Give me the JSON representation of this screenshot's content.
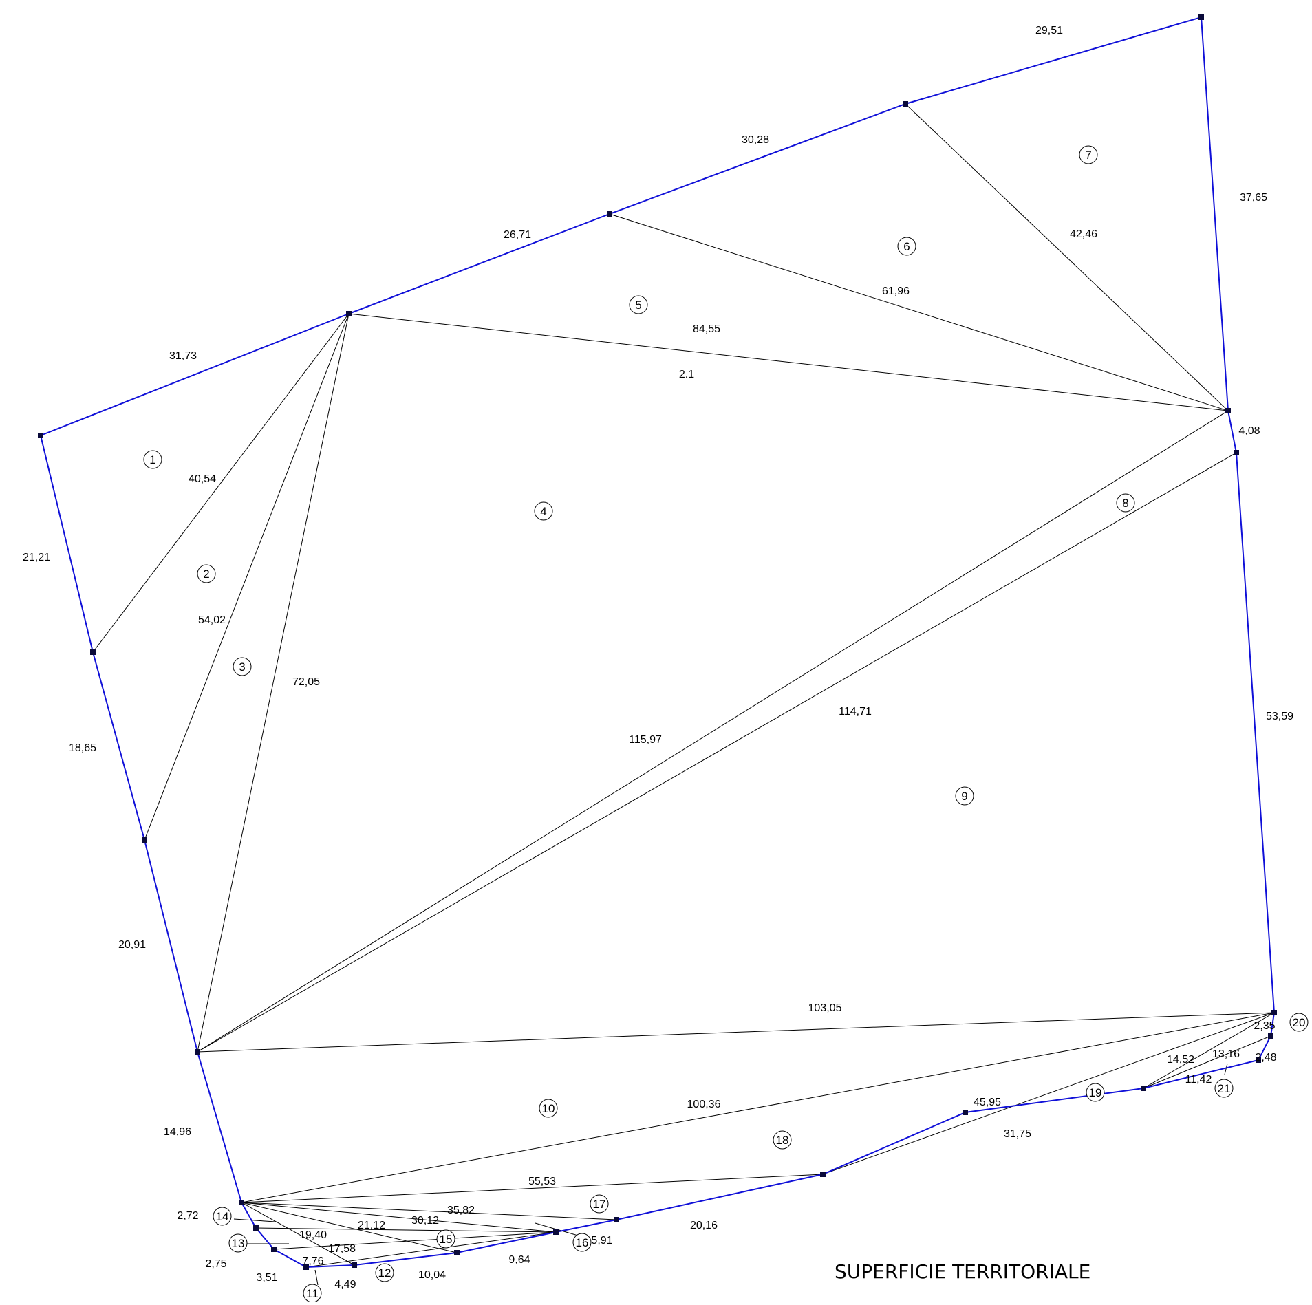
{
  "title": "SUPERFICIE TERRITORIALE",
  "colors": {
    "boundary": "#1010d8",
    "internal": "#000000",
    "vertex": "#0a0a3a",
    "background": "#ffffff"
  },
  "boundary": [
    "P1",
    "P2",
    "P3",
    "P4",
    "P5",
    "P6",
    "P7",
    "P8",
    "P9",
    "P10",
    "P11",
    "P12",
    "P13",
    "P14",
    "P15",
    "P16",
    "P17",
    "P18",
    "P19",
    "P20",
    "P21",
    "P22",
    "P23",
    "P24",
    "P25",
    "P26",
    "P27"
  ],
  "internal_segments": [
    [
      "P5",
      "P2"
    ],
    [
      "P5",
      "P3"
    ],
    [
      "P5",
      "P4"
    ],
    [
      "P5",
      "P10"
    ],
    [
      "P6",
      "P10"
    ],
    [
      "P7",
      "P10"
    ],
    [
      "P4",
      "P10"
    ],
    [
      "P4",
      "P11"
    ],
    [
      "P4",
      "P13"
    ],
    [
      "P14",
      "P25"
    ],
    [
      "P14",
      "P13"
    ],
    [
      "P14",
      "P23"
    ],
    [
      "P14",
      "P20"
    ],
    [
      "P14",
      "P19"
    ],
    [
      "P21",
      "P24"
    ],
    [
      "P21",
      "P25"
    ],
    [
      "P24",
      "P25"
    ]
  ],
  "side_labels": [
    {
      "id": "s1",
      "text": "31,73"
    },
    {
      "id": "s2",
      "text": "26,71"
    },
    {
      "id": "s3",
      "text": "30,28"
    },
    {
      "id": "s4",
      "text": "29,51"
    },
    {
      "id": "s5",
      "text": "37,65"
    },
    {
      "id": "s6",
      "text": "4,08"
    },
    {
      "id": "s7",
      "text": "53,59"
    },
    {
      "id": "s8",
      "text": "21,21"
    },
    {
      "id": "s9",
      "text": "18,65"
    },
    {
      "id": "s10",
      "text": "20,91"
    },
    {
      "id": "s11",
      "text": "14,96"
    },
    {
      "id": "s12",
      "text": "2,72"
    },
    {
      "id": "s13",
      "text": "2,75"
    },
    {
      "id": "s14",
      "text": "3,51"
    },
    {
      "id": "s15",
      "text": "4,49"
    },
    {
      "id": "s16",
      "text": "10,04"
    },
    {
      "id": "s17",
      "text": "9,64"
    },
    {
      "id": "s18",
      "text": "20,16"
    },
    {
      "id": "s19",
      "text": "31,75"
    },
    {
      "id": "s20",
      "text": "11,42"
    },
    {
      "id": "s21",
      "text": "2,48"
    },
    {
      "id": "s22",
      "text": "2,35"
    },
    {
      "id": "d1",
      "text": "40,54"
    },
    {
      "id": "d2",
      "text": "54,02"
    },
    {
      "id": "d3",
      "text": "72,05"
    },
    {
      "id": "d4",
      "text": "84,55"
    },
    {
      "id": "d5",
      "text": "2.1"
    },
    {
      "id": "d6",
      "text": "61,96"
    },
    {
      "id": "d7",
      "text": "42,46"
    },
    {
      "id": "d8",
      "text": "115,97"
    },
    {
      "id": "d9",
      "text": "114,71"
    },
    {
      "id": "d10",
      "text": "103,05"
    },
    {
      "id": "d11",
      "text": "100,36"
    },
    {
      "id": "d12",
      "text": "45,95"
    },
    {
      "id": "d13",
      "text": "55,53"
    },
    {
      "id": "d14",
      "text": "35,82"
    },
    {
      "id": "d15",
      "text": "30,12"
    },
    {
      "id": "d16",
      "text": "21,12"
    },
    {
      "id": "d17",
      "text": "19,40"
    },
    {
      "id": "d18",
      "text": "17,58"
    },
    {
      "id": "d19",
      "text": "7,76"
    },
    {
      "id": "d20",
      "text": "5,91"
    },
    {
      "id": "d21",
      "text": "14,52"
    },
    {
      "id": "d22",
      "text": "13,16"
    }
  ],
  "parcels": [
    "1",
    "2",
    "3",
    "4",
    "5",
    "6",
    "7",
    "8",
    "9",
    "10",
    "11",
    "12",
    "13",
    "14",
    "15",
    "16",
    "17",
    "18",
    "19",
    "20",
    "21"
  ]
}
